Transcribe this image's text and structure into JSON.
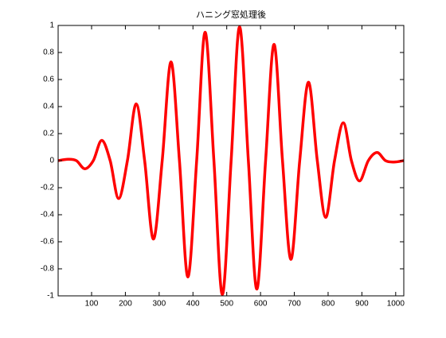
{
  "chart_data": {
    "type": "line",
    "title": "ハニング窓処理後",
    "x": [
      1,
      30,
      55,
      80,
      105,
      130,
      155,
      180,
      206,
      232,
      257,
      283,
      309,
      335,
      360,
      385,
      411,
      436,
      462,
      487,
      513,
      538,
      564,
      589,
      615,
      640,
      665,
      690,
      716,
      742,
      768,
      793,
      819,
      845,
      869,
      893,
      919,
      945,
      970,
      995,
      1024
    ],
    "values": [
      0,
      0.01,
      0,
      -0.06,
      0,
      0.15,
      0,
      -0.28,
      0,
      0.42,
      0,
      -0.58,
      0,
      0.73,
      0,
      -0.86,
      0,
      0.95,
      0,
      -0.99,
      0,
      0.99,
      0,
      -0.95,
      0,
      0.86,
      0,
      -0.73,
      0,
      0.58,
      0,
      -0.42,
      0,
      0.28,
      0,
      -0.15,
      0,
      0.06,
      0,
      -0.01,
      0
    ],
    "color": "#ff0000",
    "xlim": [
      1,
      1024
    ],
    "xticks": [
      100,
      200,
      300,
      400,
      500,
      600,
      700,
      800,
      900,
      1000
    ],
    "ylim": [
      -1,
      1
    ],
    "yticks": [
      -1,
      -0.8,
      -0.6,
      -0.4,
      -0.2,
      0,
      0.2,
      0.4,
      0.6,
      0.8,
      1
    ]
  }
}
